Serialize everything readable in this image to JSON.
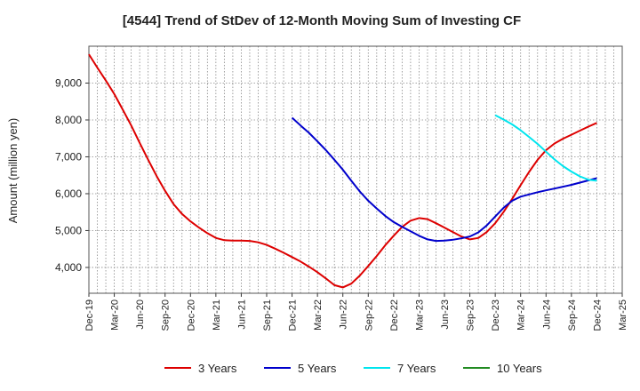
{
  "chart_data": {
    "type": "line",
    "title": "[4544]  Trend of StDev of 12-Month Moving Sum of Investing CF",
    "xlabel": "",
    "ylabel": "Amount (million yen)",
    "ylim": [
      3300,
      10000
    ],
    "yticks": [
      4000,
      5000,
      6000,
      7000,
      8000,
      9000
    ],
    "ytick_labels": [
      "4,000",
      "5,000",
      "6,000",
      "7,000",
      "8,000",
      "9,000"
    ],
    "x_tick_labels": [
      "Dec-19",
      "Mar-20",
      "Jun-20",
      "Sep-20",
      "Dec-20",
      "Mar-21",
      "Jun-21",
      "Sep-21",
      "Dec-21",
      "Mar-22",
      "Jun-22",
      "Sep-22",
      "Dec-22",
      "Mar-23",
      "Jun-23",
      "Sep-23",
      "Dec-23",
      "Mar-24",
      "Jun-24",
      "Sep-24",
      "Dec-24",
      "Mar-25"
    ],
    "grid": true,
    "legend_position": "bottom",
    "series": [
      {
        "name": "3 Years",
        "color": "#dd0000",
        "x": [
          "Dec-19",
          "Jan-20",
          "Feb-20",
          "Mar-20",
          "Apr-20",
          "May-20",
          "Jun-20",
          "Jul-20",
          "Aug-20",
          "Sep-20",
          "Oct-20",
          "Nov-20",
          "Dec-20",
          "Jan-21",
          "Feb-21",
          "Mar-21",
          "Apr-21",
          "May-21",
          "Jun-21",
          "Jul-21",
          "Aug-21",
          "Sep-21",
          "Oct-21",
          "Nov-21",
          "Dec-21",
          "Jan-22",
          "Feb-22",
          "Mar-22",
          "Apr-22",
          "May-22",
          "Jun-22",
          "Jul-22",
          "Aug-22",
          "Sep-22",
          "Oct-22",
          "Nov-22",
          "Dec-22",
          "Jan-23",
          "Feb-23",
          "Mar-23",
          "Apr-23",
          "May-23",
          "Jun-23",
          "Jul-23",
          "Aug-23",
          "Sep-23",
          "Oct-23",
          "Nov-23",
          "Dec-23",
          "Jan-24",
          "Feb-24",
          "Mar-24",
          "Apr-24",
          "May-24",
          "Jun-24",
          "Jul-24",
          "Aug-24",
          "Sep-24",
          "Oct-24",
          "Nov-24",
          "Dec-24"
        ],
        "values": [
          9780,
          9420,
          9070,
          8700,
          8280,
          7850,
          7380,
          6920,
          6480,
          6080,
          5720,
          5450,
          5250,
          5080,
          4930,
          4800,
          4740,
          4730,
          4730,
          4720,
          4680,
          4610,
          4510,
          4400,
          4280,
          4160,
          4020,
          3870,
          3700,
          3520,
          3460,
          3560,
          3780,
          4040,
          4310,
          4600,
          4860,
          5100,
          5270,
          5340,
          5310,
          5200,
          5080,
          4960,
          4840,
          4760,
          4800,
          4960,
          5200,
          5510,
          5860,
          6230,
          6590,
          6920,
          7180,
          7360,
          7490,
          7600,
          7710,
          7820,
          7920
        ]
      },
      {
        "name": "5 Years",
        "color": "#0000cc",
        "x": [
          "Dec-21",
          "Jan-22",
          "Feb-22",
          "Mar-22",
          "Apr-22",
          "May-22",
          "Jun-22",
          "Jul-22",
          "Aug-22",
          "Sep-22",
          "Oct-22",
          "Nov-22",
          "Dec-22",
          "Jan-23",
          "Feb-23",
          "Mar-23",
          "Apr-23",
          "May-23",
          "Jun-23",
          "Jul-23",
          "Aug-23",
          "Sep-23",
          "Oct-23",
          "Nov-23",
          "Dec-23",
          "Jan-24",
          "Feb-24",
          "Mar-24",
          "Apr-24",
          "May-24",
          "Jun-24",
          "Jul-24",
          "Aug-24",
          "Sep-24",
          "Oct-24",
          "Nov-24",
          "Dec-24"
        ],
        "values": [
          8060,
          7850,
          7650,
          7420,
          7180,
          6920,
          6650,
          6350,
          6060,
          5810,
          5600,
          5400,
          5230,
          5100,
          4980,
          4860,
          4760,
          4720,
          4730,
          4750,
          4790,
          4840,
          4950,
          5140,
          5380,
          5620,
          5810,
          5920,
          5980,
          6040,
          6090,
          6140,
          6190,
          6240,
          6300,
          6360,
          6420
        ]
      },
      {
        "name": "7 Years",
        "color": "#00e5ee",
        "x": [
          "Dec-23",
          "Jan-24",
          "Feb-24",
          "Mar-24",
          "Apr-24",
          "May-24",
          "Jun-24",
          "Jul-24",
          "Aug-24",
          "Sep-24",
          "Oct-24",
          "Nov-24",
          "Dec-24"
        ],
        "values": [
          8130,
          8010,
          7880,
          7720,
          7540,
          7350,
          7140,
          6930,
          6750,
          6600,
          6470,
          6380,
          6350
        ]
      },
      {
        "name": "10 Years",
        "color": "#228b22",
        "x": [],
        "values": []
      }
    ]
  }
}
